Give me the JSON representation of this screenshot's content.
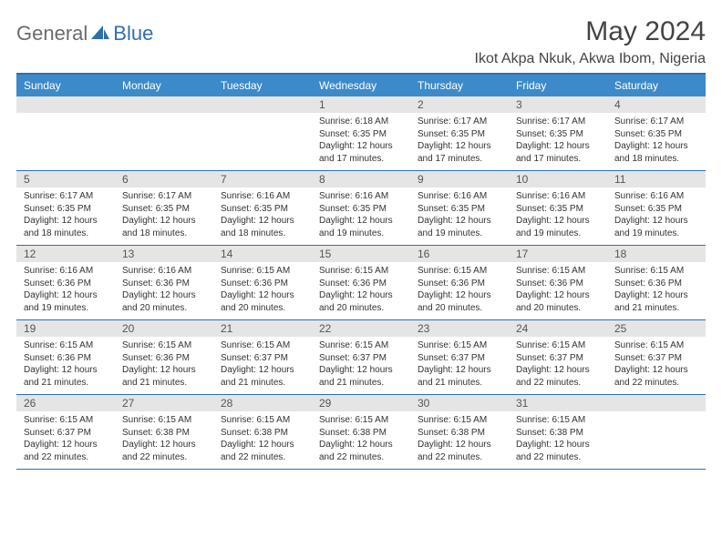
{
  "logo": {
    "general": "General",
    "blue": "Blue",
    "shape_color": "#2f6fad"
  },
  "title": "May 2024",
  "location": "Ikot Akpa Nkuk, Akwa Ibom, Nigeria",
  "colors": {
    "header_bg": "#3c8ac9",
    "border": "#2f6fad",
    "numbar_bg": "#e5e5e5",
    "text": "#333333"
  },
  "day_headers": [
    "Sunday",
    "Monday",
    "Tuesday",
    "Wednesday",
    "Thursday",
    "Friday",
    "Saturday"
  ],
  "weeks": [
    [
      {
        "n": "",
        "sr": "",
        "ss": "",
        "dl1": "",
        "dl2": ""
      },
      {
        "n": "",
        "sr": "",
        "ss": "",
        "dl1": "",
        "dl2": ""
      },
      {
        "n": "",
        "sr": "",
        "ss": "",
        "dl1": "",
        "dl2": ""
      },
      {
        "n": "1",
        "sr": "Sunrise: 6:18 AM",
        "ss": "Sunset: 6:35 PM",
        "dl1": "Daylight: 12 hours",
        "dl2": "and 17 minutes."
      },
      {
        "n": "2",
        "sr": "Sunrise: 6:17 AM",
        "ss": "Sunset: 6:35 PM",
        "dl1": "Daylight: 12 hours",
        "dl2": "and 17 minutes."
      },
      {
        "n": "3",
        "sr": "Sunrise: 6:17 AM",
        "ss": "Sunset: 6:35 PM",
        "dl1": "Daylight: 12 hours",
        "dl2": "and 17 minutes."
      },
      {
        "n": "4",
        "sr": "Sunrise: 6:17 AM",
        "ss": "Sunset: 6:35 PM",
        "dl1": "Daylight: 12 hours",
        "dl2": "and 18 minutes."
      }
    ],
    [
      {
        "n": "5",
        "sr": "Sunrise: 6:17 AM",
        "ss": "Sunset: 6:35 PM",
        "dl1": "Daylight: 12 hours",
        "dl2": "and 18 minutes."
      },
      {
        "n": "6",
        "sr": "Sunrise: 6:17 AM",
        "ss": "Sunset: 6:35 PM",
        "dl1": "Daylight: 12 hours",
        "dl2": "and 18 minutes."
      },
      {
        "n": "7",
        "sr": "Sunrise: 6:16 AM",
        "ss": "Sunset: 6:35 PM",
        "dl1": "Daylight: 12 hours",
        "dl2": "and 18 minutes."
      },
      {
        "n": "8",
        "sr": "Sunrise: 6:16 AM",
        "ss": "Sunset: 6:35 PM",
        "dl1": "Daylight: 12 hours",
        "dl2": "and 19 minutes."
      },
      {
        "n": "9",
        "sr": "Sunrise: 6:16 AM",
        "ss": "Sunset: 6:35 PM",
        "dl1": "Daylight: 12 hours",
        "dl2": "and 19 minutes."
      },
      {
        "n": "10",
        "sr": "Sunrise: 6:16 AM",
        "ss": "Sunset: 6:35 PM",
        "dl1": "Daylight: 12 hours",
        "dl2": "and 19 minutes."
      },
      {
        "n": "11",
        "sr": "Sunrise: 6:16 AM",
        "ss": "Sunset: 6:35 PM",
        "dl1": "Daylight: 12 hours",
        "dl2": "and 19 minutes."
      }
    ],
    [
      {
        "n": "12",
        "sr": "Sunrise: 6:16 AM",
        "ss": "Sunset: 6:36 PM",
        "dl1": "Daylight: 12 hours",
        "dl2": "and 19 minutes."
      },
      {
        "n": "13",
        "sr": "Sunrise: 6:16 AM",
        "ss": "Sunset: 6:36 PM",
        "dl1": "Daylight: 12 hours",
        "dl2": "and 20 minutes."
      },
      {
        "n": "14",
        "sr": "Sunrise: 6:15 AM",
        "ss": "Sunset: 6:36 PM",
        "dl1": "Daylight: 12 hours",
        "dl2": "and 20 minutes."
      },
      {
        "n": "15",
        "sr": "Sunrise: 6:15 AM",
        "ss": "Sunset: 6:36 PM",
        "dl1": "Daylight: 12 hours",
        "dl2": "and 20 minutes."
      },
      {
        "n": "16",
        "sr": "Sunrise: 6:15 AM",
        "ss": "Sunset: 6:36 PM",
        "dl1": "Daylight: 12 hours",
        "dl2": "and 20 minutes."
      },
      {
        "n": "17",
        "sr": "Sunrise: 6:15 AM",
        "ss": "Sunset: 6:36 PM",
        "dl1": "Daylight: 12 hours",
        "dl2": "and 20 minutes."
      },
      {
        "n": "18",
        "sr": "Sunrise: 6:15 AM",
        "ss": "Sunset: 6:36 PM",
        "dl1": "Daylight: 12 hours",
        "dl2": "and 21 minutes."
      }
    ],
    [
      {
        "n": "19",
        "sr": "Sunrise: 6:15 AM",
        "ss": "Sunset: 6:36 PM",
        "dl1": "Daylight: 12 hours",
        "dl2": "and 21 minutes."
      },
      {
        "n": "20",
        "sr": "Sunrise: 6:15 AM",
        "ss": "Sunset: 6:36 PM",
        "dl1": "Daylight: 12 hours",
        "dl2": "and 21 minutes."
      },
      {
        "n": "21",
        "sr": "Sunrise: 6:15 AM",
        "ss": "Sunset: 6:37 PM",
        "dl1": "Daylight: 12 hours",
        "dl2": "and 21 minutes."
      },
      {
        "n": "22",
        "sr": "Sunrise: 6:15 AM",
        "ss": "Sunset: 6:37 PM",
        "dl1": "Daylight: 12 hours",
        "dl2": "and 21 minutes."
      },
      {
        "n": "23",
        "sr": "Sunrise: 6:15 AM",
        "ss": "Sunset: 6:37 PM",
        "dl1": "Daylight: 12 hours",
        "dl2": "and 21 minutes."
      },
      {
        "n": "24",
        "sr": "Sunrise: 6:15 AM",
        "ss": "Sunset: 6:37 PM",
        "dl1": "Daylight: 12 hours",
        "dl2": "and 22 minutes."
      },
      {
        "n": "25",
        "sr": "Sunrise: 6:15 AM",
        "ss": "Sunset: 6:37 PM",
        "dl1": "Daylight: 12 hours",
        "dl2": "and 22 minutes."
      }
    ],
    [
      {
        "n": "26",
        "sr": "Sunrise: 6:15 AM",
        "ss": "Sunset: 6:37 PM",
        "dl1": "Daylight: 12 hours",
        "dl2": "and 22 minutes."
      },
      {
        "n": "27",
        "sr": "Sunrise: 6:15 AM",
        "ss": "Sunset: 6:38 PM",
        "dl1": "Daylight: 12 hours",
        "dl2": "and 22 minutes."
      },
      {
        "n": "28",
        "sr": "Sunrise: 6:15 AM",
        "ss": "Sunset: 6:38 PM",
        "dl1": "Daylight: 12 hours",
        "dl2": "and 22 minutes."
      },
      {
        "n": "29",
        "sr": "Sunrise: 6:15 AM",
        "ss": "Sunset: 6:38 PM",
        "dl1": "Daylight: 12 hours",
        "dl2": "and 22 minutes."
      },
      {
        "n": "30",
        "sr": "Sunrise: 6:15 AM",
        "ss": "Sunset: 6:38 PM",
        "dl1": "Daylight: 12 hours",
        "dl2": "and 22 minutes."
      },
      {
        "n": "31",
        "sr": "Sunrise: 6:15 AM",
        "ss": "Sunset: 6:38 PM",
        "dl1": "Daylight: 12 hours",
        "dl2": "and 22 minutes."
      },
      {
        "n": "",
        "sr": "",
        "ss": "",
        "dl1": "",
        "dl2": ""
      }
    ]
  ]
}
